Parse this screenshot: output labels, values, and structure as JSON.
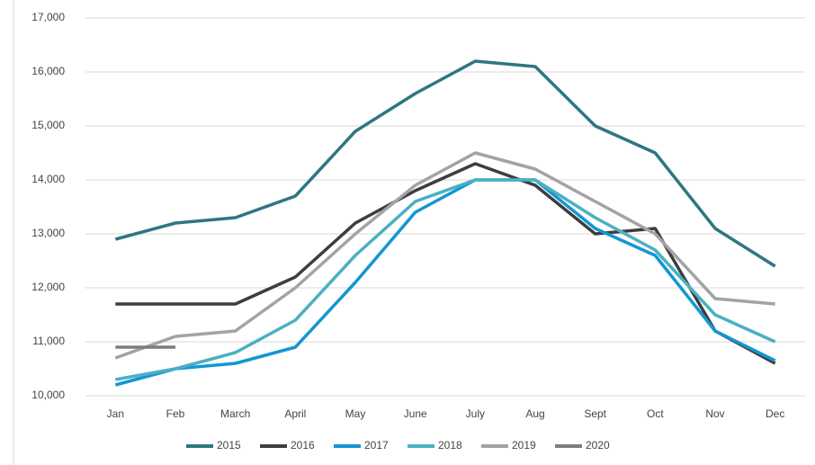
{
  "chart_data": {
    "type": "line",
    "categories": [
      "Jan",
      "Feb",
      "March",
      "April",
      "May",
      "June",
      "July",
      "Aug",
      "Sept",
      "Oct",
      "Nov",
      "Dec"
    ],
    "series": [
      {
        "name": "2015",
        "color": "#2e7682",
        "values": [
          12900,
          13200,
          13300,
          13700,
          14900,
          15600,
          16200,
          16100,
          15000,
          14500,
          13100,
          12400
        ]
      },
      {
        "name": "2016",
        "color": "#3d3d3d",
        "values": [
          11700,
          11700,
          11700,
          12200,
          13200,
          13800,
          14300,
          13900,
          13000,
          13100,
          11200,
          10600
        ]
      },
      {
        "name": "2017",
        "color": "#1496d2",
        "values": [
          10200,
          10500,
          10600,
          10900,
          12100,
          13400,
          14000,
          14000,
          13100,
          12600,
          11200,
          10650
        ]
      },
      {
        "name": "2018",
        "color": "#4bb0c2",
        "values": [
          10300,
          10500,
          10800,
          11400,
          12600,
          13600,
          14000,
          14000,
          13300,
          12700,
          11500,
          11000
        ]
      },
      {
        "name": "2019",
        "color": "#a3a3a3",
        "values": [
          10700,
          11100,
          11200,
          12000,
          13000,
          13900,
          14500,
          14200,
          13600,
          13000,
          11800,
          11700
        ]
      },
      {
        "name": "2020",
        "color": "#7d7d7d",
        "values": [
          10900,
          10900,
          null,
          null,
          null,
          null,
          null,
          null,
          null,
          null,
          null,
          null
        ]
      }
    ],
    "ylim": [
      10000,
      17000
    ],
    "yticks": [
      {
        "value": 10000,
        "label": "10,000"
      },
      {
        "value": 11000,
        "label": "11,000"
      },
      {
        "value": 12000,
        "label": "12,000"
      },
      {
        "value": 13000,
        "label": "13,000"
      },
      {
        "value": 14000,
        "label": "14,000"
      },
      {
        "value": 15000,
        "label": "15,000"
      },
      {
        "value": 16000,
        "label": "16,000"
      },
      {
        "value": 17000,
        "label": "17,000"
      }
    ],
    "grid": true,
    "legend": "bottom"
  }
}
